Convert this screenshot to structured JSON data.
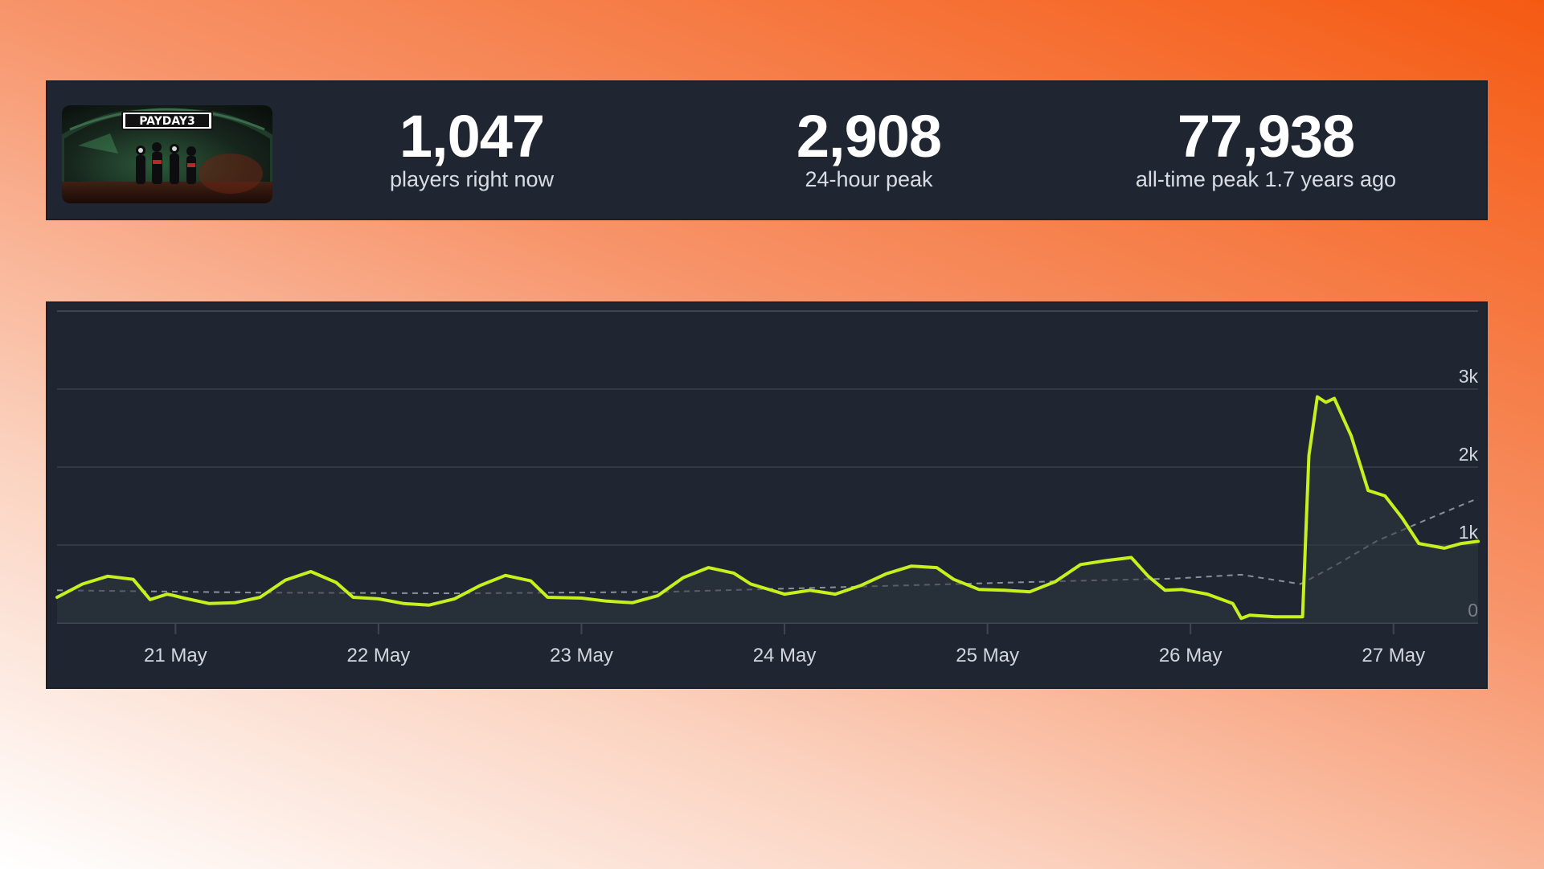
{
  "game": {
    "logo_text": "PAYDAY3"
  },
  "stats": {
    "current": {
      "value": "1,047",
      "label": "players right now"
    },
    "peak_24h": {
      "value": "2,908",
      "label": "24-hour peak"
    },
    "all_time": {
      "value": "77,938",
      "label": "all-time peak 1.7 years ago"
    }
  },
  "colors": {
    "panel": "#202631",
    "line": "#c8f01e",
    "avg_line": "#8a8f98",
    "grid": "#3e4652",
    "axis_text": "#d3d7dd"
  },
  "chart_data": {
    "type": "line",
    "title": "",
    "xlabel": "",
    "ylabel": "",
    "categories": [
      "21 May",
      "22 May",
      "23 May",
      "24 May",
      "25 May",
      "26 May",
      "27 May"
    ],
    "x_range": [
      "2025-05-20 10:00",
      "2025-05-27 10:00"
    ],
    "ylim": [
      0,
      3500
    ],
    "yticks": [
      0,
      1000,
      2000,
      3000
    ],
    "ytick_labels": [
      "0",
      "1k",
      "2k",
      "3k"
    ],
    "grid": true,
    "legend": "none",
    "series": [
      {
        "style": "solid",
        "x": [
          "2025-05-20 10:00",
          "2025-05-20 13:00",
          "2025-05-20 16:00",
          "2025-05-20 19:00",
          "2025-05-20 21:00",
          "2025-05-20 23:00",
          "2025-05-20 23:30",
          "2025-05-21 01:00",
          "2025-05-21 04:00",
          "2025-05-21 07:00",
          "2025-05-21 10:00",
          "2025-05-21 13:00",
          "2025-05-21 16:00",
          "2025-05-21 19:00",
          "2025-05-21 21:00",
          "2025-05-22 00:00",
          "2025-05-22 03:00",
          "2025-05-22 06:00",
          "2025-05-22 09:00",
          "2025-05-22 12:00",
          "2025-05-22 15:00",
          "2025-05-22 18:00",
          "2025-05-22 20:00",
          "2025-05-23 00:00",
          "2025-05-23 03:00",
          "2025-05-23 06:00",
          "2025-05-23 09:00",
          "2025-05-23 12:00",
          "2025-05-23 15:00",
          "2025-05-23 18:00",
          "2025-05-23 20:00",
          "2025-05-24 00:00",
          "2025-05-24 03:00",
          "2025-05-24 06:00",
          "2025-05-24 09:00",
          "2025-05-24 12:00",
          "2025-05-24 15:00",
          "2025-05-24 18:00",
          "2025-05-24 20:00",
          "2025-05-24 23:00",
          "2025-05-25 02:00",
          "2025-05-25 05:00",
          "2025-05-25 08:00",
          "2025-05-25 11:00",
          "2025-05-25 14:00",
          "2025-05-25 17:00",
          "2025-05-25 19:00",
          "2025-05-25 21:00",
          "2025-05-25 23:00",
          "2025-05-26 02:00",
          "2025-05-26 05:00",
          "2025-05-26 06:00",
          "2025-05-26 07:00",
          "2025-05-26 10:00",
          "2025-05-26 13:00",
          "2025-05-26 13:15",
          "2025-05-26 14:00",
          "2025-05-26 15:00",
          "2025-05-26 16:00",
          "2025-05-26 17:00",
          "2025-05-26 19:00",
          "2025-05-26 21:00",
          "2025-05-26 23:00",
          "2025-05-27 01:00",
          "2025-05-27 03:00",
          "2025-05-27 06:00",
          "2025-05-27 08:00",
          "2025-05-27 10:00"
        ],
        "y": [
          330,
          500,
          600,
          560,
          300,
          370,
          360,
          320,
          250,
          260,
          330,
          550,
          660,
          520,
          330,
          310,
          250,
          230,
          310,
          480,
          610,
          540,
          330,
          320,
          280,
          260,
          350,
          580,
          710,
          640,
          500,
          370,
          420,
          370,
          480,
          630,
          730,
          710,
          560,
          430,
          420,
          400,
          530,
          750,
          800,
          840,
          600,
          420,
          430,
          370,
          250,
          60,
          100,
          80,
          80,
          80,
          2150,
          2900,
          2830,
          2880,
          2400,
          1700,
          1630,
          1350,
          1020,
          960,
          1020,
          1047
        ]
      },
      {
        "style": "dashed",
        "x": [
          "2025-05-20 10:00",
          "2025-05-21 10:00",
          "2025-05-22 10:00",
          "2025-05-23 10:00",
          "2025-05-24 10:00",
          "2025-05-25 10:00",
          "2025-05-25 22:00",
          "2025-05-26 06:00",
          "2025-05-26 13:00",
          "2025-05-26 17:00",
          "2025-05-26 22:00",
          "2025-05-27 04:00",
          "2025-05-27 10:00"
        ],
        "y": [
          420,
          390,
          380,
          400,
          470,
          540,
          570,
          620,
          500,
          730,
          1050,
          1330,
          1600
        ]
      }
    ]
  }
}
